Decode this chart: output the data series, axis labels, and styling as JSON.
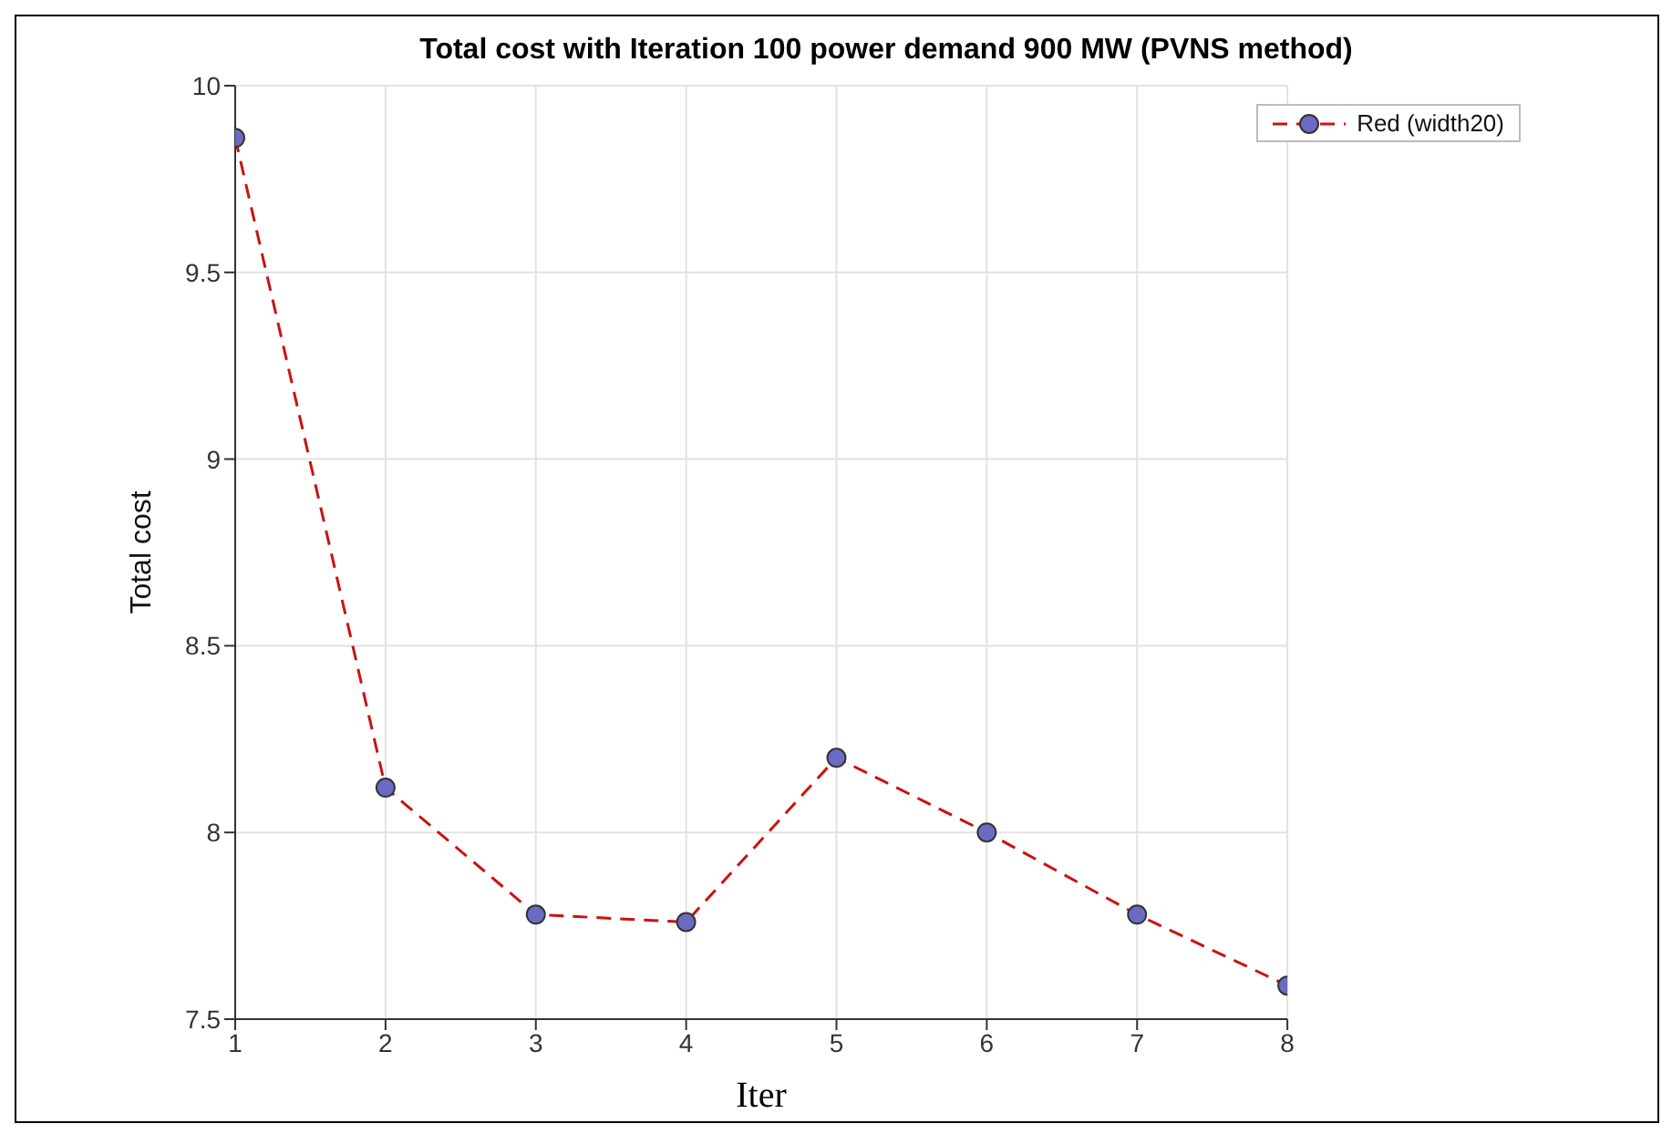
{
  "chart_data": {
    "type": "line",
    "title": "Total cost with Iteration 100 power demand 900 MW (PVNS method)",
    "xlabel": "Iter",
    "ylabel": "Total cost",
    "x": [
      1,
      2,
      3,
      4,
      5,
      6,
      7,
      8
    ],
    "series": [
      {
        "name": "Red (width20)",
        "color": "#cc1111",
        "values": [
          9.86,
          8.12,
          7.78,
          7.76,
          8.2,
          8.0,
          7.78,
          7.59
        ]
      }
    ],
    "xlim": [
      1,
      8
    ],
    "xticks": [
      1,
      2,
      3,
      4,
      5,
      6,
      7,
      8
    ],
    "ylim": [
      7.5,
      10
    ],
    "yticks": [
      7.5,
      8,
      8.5,
      9,
      9.5,
      10
    ],
    "grid": true,
    "legend": "top right",
    "marker": "circle",
    "line_style": "dashed"
  }
}
